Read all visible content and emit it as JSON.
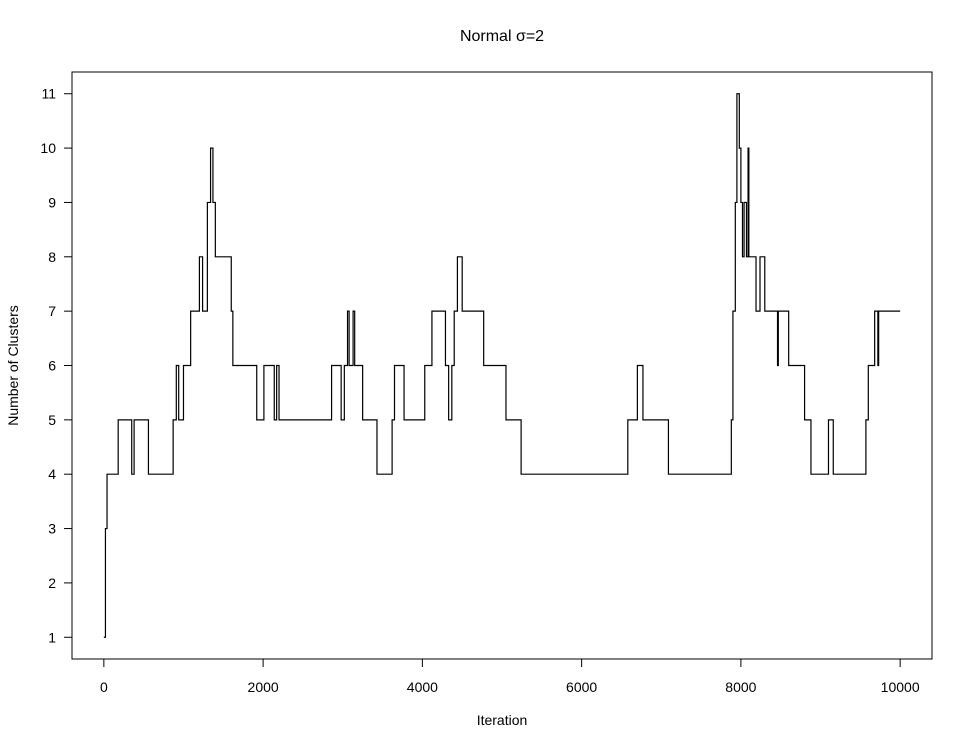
{
  "chart_data": {
    "type": "line",
    "title": "Normal σ=2",
    "xlabel": "Iteration",
    "ylabel": "Number of Clusters",
    "xlim": [
      -400,
      10400
    ],
    "ylim": [
      0.6,
      11.4
    ],
    "x_ticks": [
      0,
      2000,
      4000,
      6000,
      8000,
      10000
    ],
    "x_tick_labels": [
      "0",
      "2000",
      "4000",
      "6000",
      "8000",
      "10000"
    ],
    "y_ticks": [
      1,
      2,
      3,
      4,
      5,
      6,
      7,
      8,
      9,
      10,
      11
    ],
    "y_tick_labels": [
      "1",
      "2",
      "3",
      "4",
      "5",
      "6",
      "7",
      "8",
      "9",
      "10",
      "11"
    ],
    "grid": false,
    "legend": "none",
    "line_color": "#000000",
    "step": true,
    "series": [
      {
        "x": [
          0,
          20,
          40,
          180,
          350,
          380,
          560,
          870,
          910,
          940,
          1000,
          1090,
          1200,
          1240,
          1300,
          1340,
          1370,
          1400,
          1450,
          1600,
          1620,
          1660,
          1920,
          2010,
          2140,
          2170,
          2200,
          2230,
          2860,
          2980,
          3020,
          3060,
          3080,
          3100,
          3130,
          3150,
          3170,
          3250,
          3430,
          3620,
          3650,
          3660,
          3770,
          3940,
          4030,
          4120,
          4290,
          4330,
          4370,
          4400,
          4440,
          4500,
          4700,
          4750,
          4770,
          5050,
          5240,
          5900,
          6580,
          6700,
          6770,
          7090,
          7880,
          7900,
          7930,
          7950,
          7980,
          8000,
          8020,
          8040,
          8070,
          8090,
          8100,
          8110,
          8120,
          8150,
          8190,
          8240,
          8260,
          8300,
          8450,
          8460,
          8470,
          8480,
          8600,
          8800,
          8880,
          9100,
          9160,
          9230,
          9570,
          9600,
          9640,
          9680,
          9700,
          9720,
          9730,
          9750,
          10000
        ],
        "y": [
          1,
          3,
          4,
          5,
          4,
          5,
          4,
          5,
          6,
          5,
          6,
          7,
          8,
          7,
          9,
          10,
          9,
          8,
          8,
          7,
          6,
          6,
          5,
          6,
          5,
          6,
          5,
          5,
          6,
          5,
          6,
          7,
          6,
          6,
          7,
          6,
          6,
          5,
          4,
          5,
          6,
          6,
          5,
          5,
          6,
          7,
          6,
          5,
          6,
          7,
          8,
          7,
          7,
          7,
          6,
          5,
          4,
          4,
          5,
          6,
          5,
          4,
          5,
          7,
          9,
          11,
          10,
          9,
          8,
          9,
          8,
          10,
          8,
          8,
          8,
          8,
          7,
          8,
          8,
          7,
          7,
          6,
          7,
          7,
          6,
          5,
          4,
          5,
          4,
          4,
          5,
          6,
          6,
          7,
          7,
          6,
          7,
          7,
          7
        ]
      }
    ]
  }
}
